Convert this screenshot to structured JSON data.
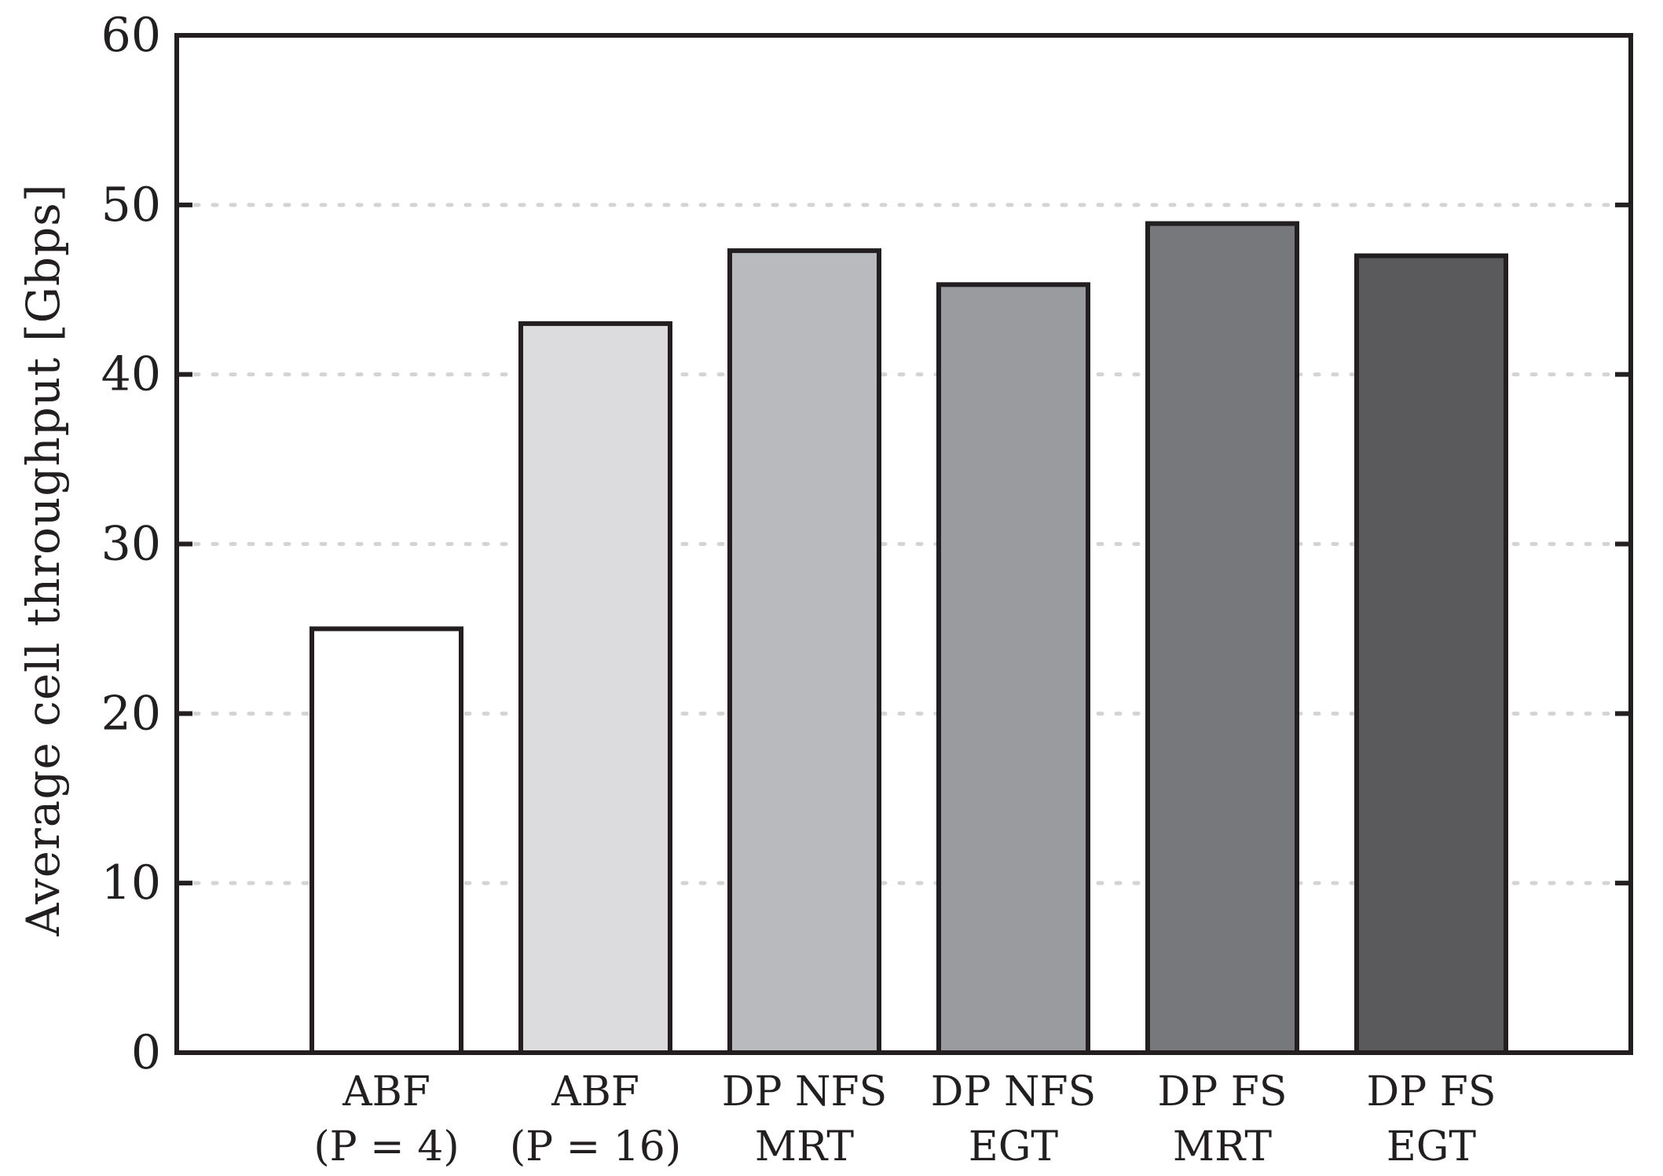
{
  "chart_data": {
    "type": "bar",
    "title": "",
    "xlabel": "",
    "ylabel": "Average cell throughput [Gbps]",
    "ylim": [
      0,
      60
    ],
    "yticks": [
      0,
      10,
      20,
      30,
      40,
      50,
      60
    ],
    "grid": "horizontal dotted",
    "categories": [
      [
        "ABF",
        "(P = 4)"
      ],
      [
        "ABF",
        "(P = 16)"
      ],
      [
        "DP NFS",
        "MRT"
      ],
      [
        "DP NFS",
        "EGT"
      ],
      [
        "DP FS",
        "MRT"
      ],
      [
        "DP FS",
        "EGT"
      ]
    ],
    "values": [
      25.0,
      43.0,
      47.3,
      45.3,
      48.9,
      47.0
    ],
    "bar_colors": [
      "#ffffff",
      "#dcdcde",
      "#b9babe",
      "#9a9b9f",
      "#77787c",
      "#5a5a5c"
    ],
    "edge_color": "#231f20"
  }
}
